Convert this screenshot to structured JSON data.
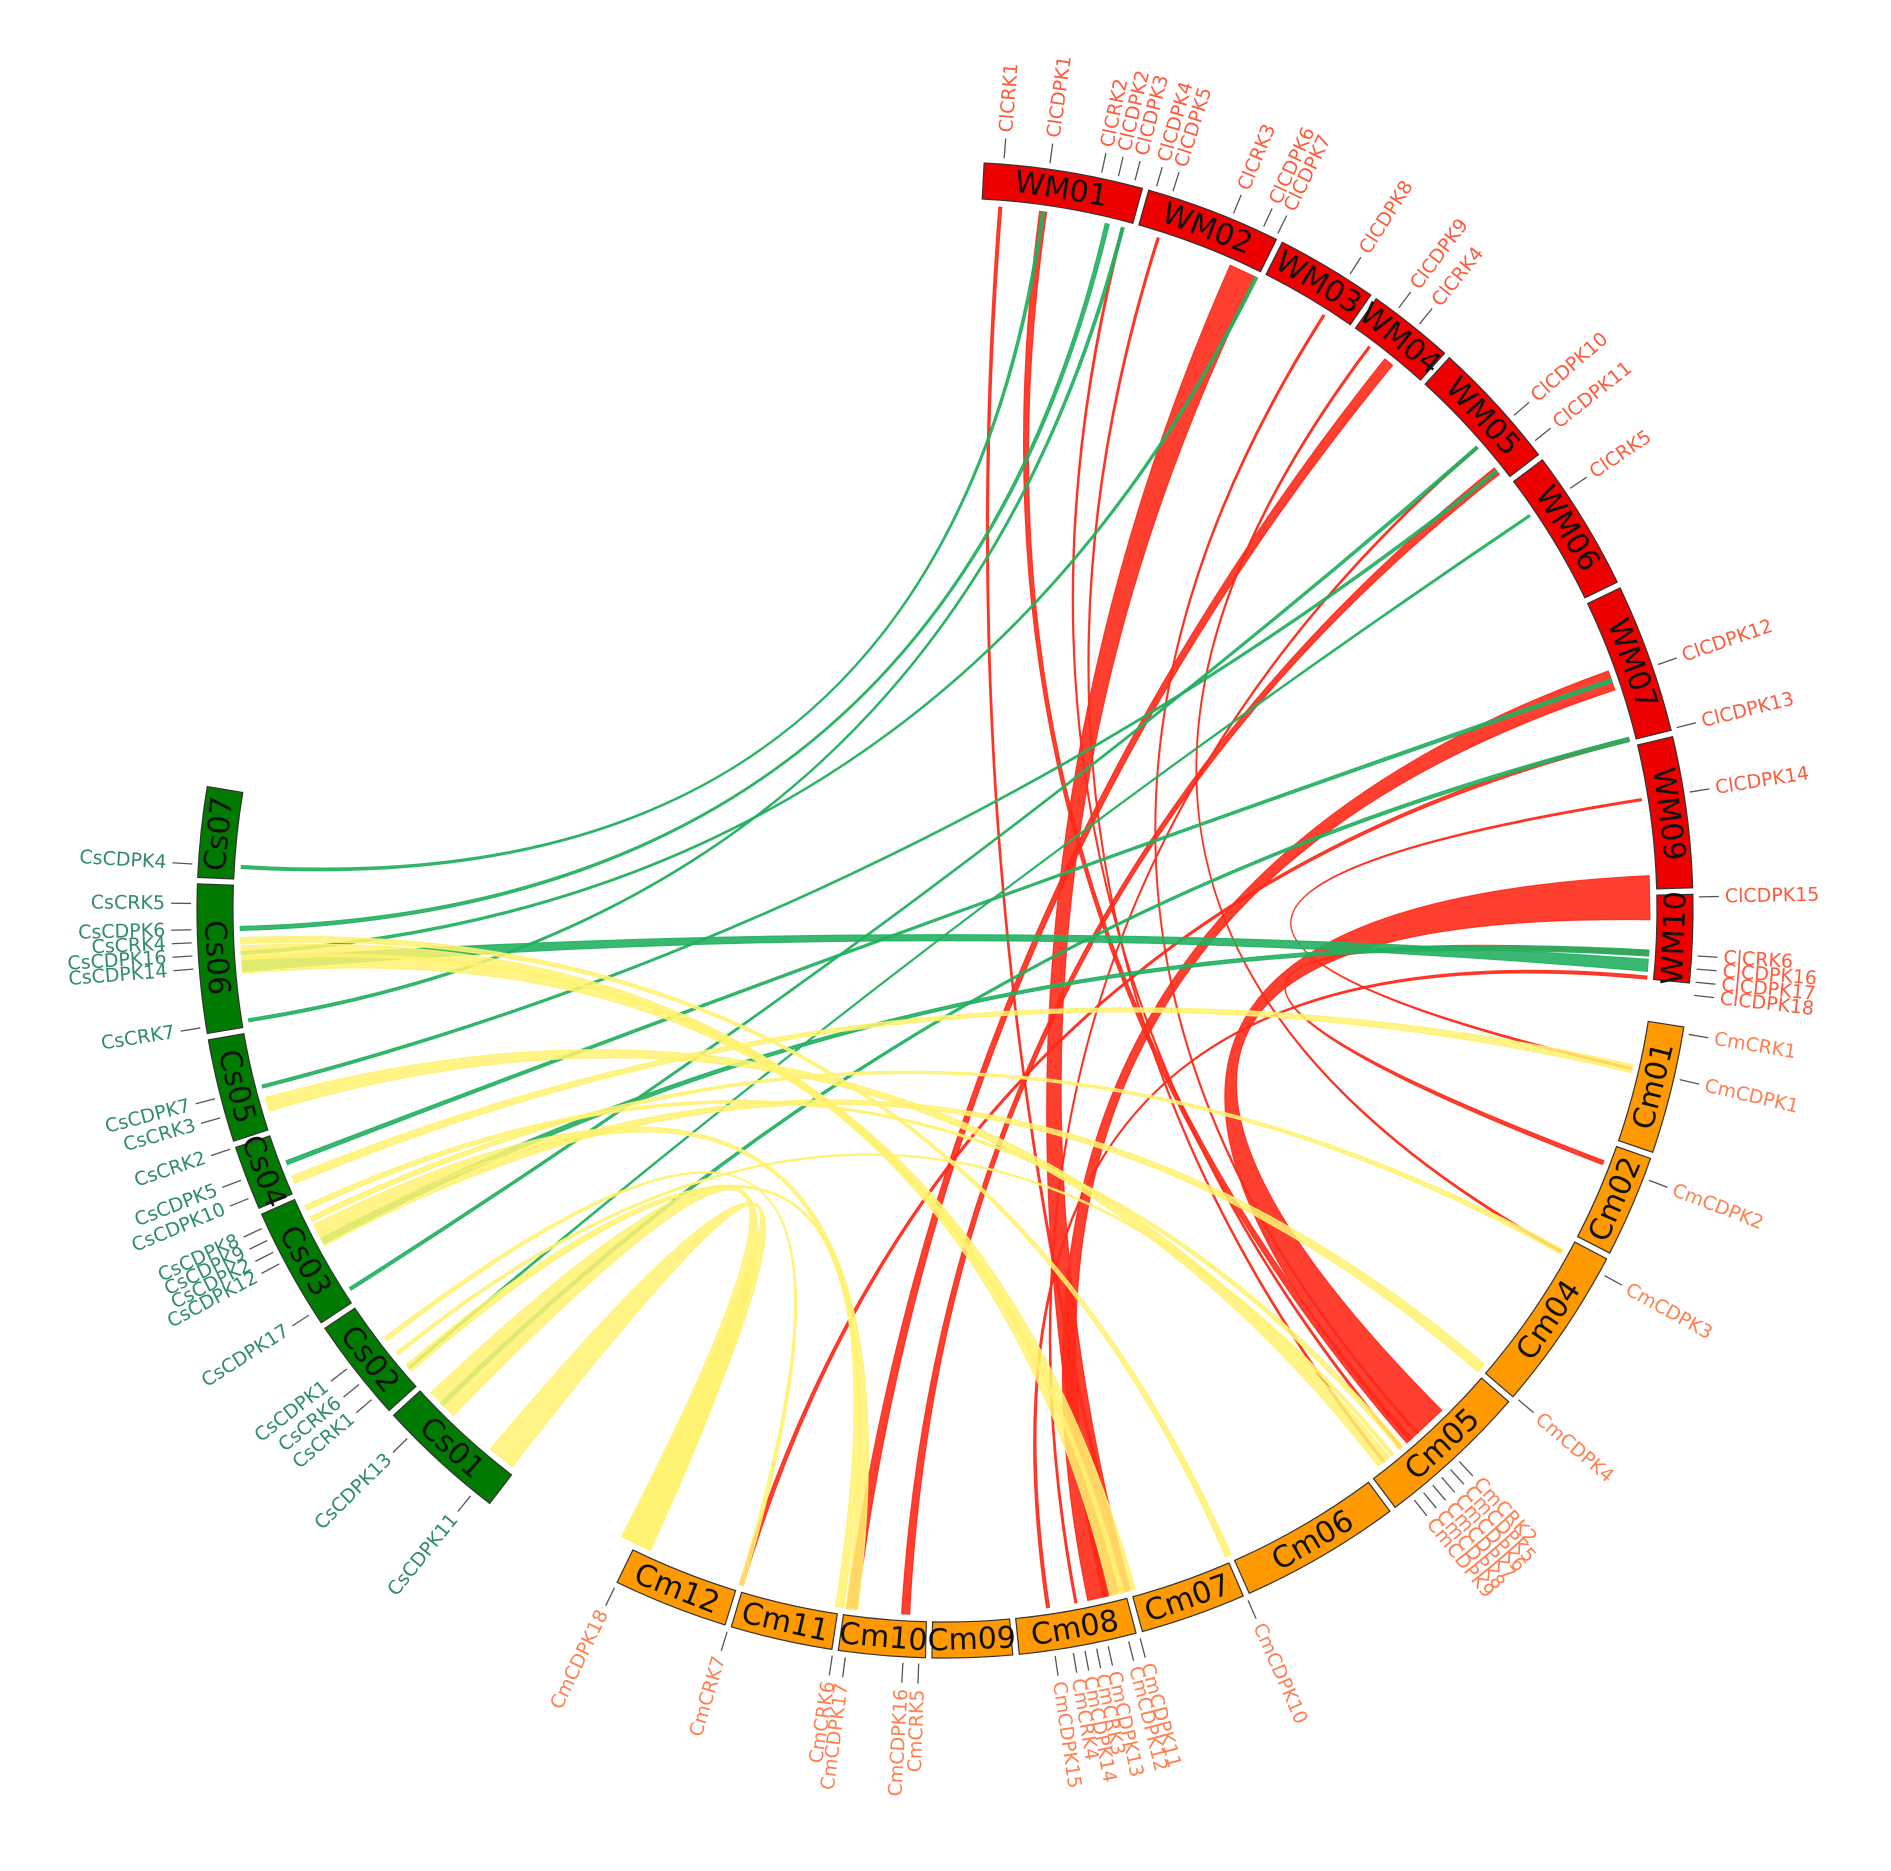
{
  "colors": {
    "cs": "#007a00",
    "cs_label": "#2e8b6e",
    "cs_link": "#22b060",
    "wm": "#ee0000",
    "wm_label": "#ff5a3c",
    "wm_link": "#ff2a1a",
    "cm": "#ff9900",
    "cm_label": "#ff7f50",
    "cm_link": "#fff270"
  },
  "chromosomes": [
    {
      "name": "WM01",
      "group": "wm"
    },
    {
      "name": "WM02",
      "group": "wm"
    },
    {
      "name": "WM03",
      "group": "wm"
    },
    {
      "name": "WM04",
      "group": "wm"
    },
    {
      "name": "WM05",
      "group": "wm"
    },
    {
      "name": "WM06",
      "group": "wm"
    },
    {
      "name": "WM07",
      "group": "wm"
    },
    {
      "name": "WM09",
      "group": "wm"
    },
    {
      "name": "WM10",
      "group": "wm"
    },
    {
      "name": "Cm01",
      "group": "cm"
    },
    {
      "name": "Cm02",
      "group": "cm"
    },
    {
      "name": "Cm04",
      "group": "cm"
    },
    {
      "name": "Cm05",
      "group": "cm"
    },
    {
      "name": "Cm06",
      "group": "cm"
    },
    {
      "name": "Cm07",
      "group": "cm"
    },
    {
      "name": "Cm08",
      "group": "cm"
    },
    {
      "name": "Cm09",
      "group": "cm"
    },
    {
      "name": "Cm10",
      "group": "cm"
    },
    {
      "name": "Cm11",
      "group": "cm"
    },
    {
      "name": "Cm12",
      "group": "cm"
    },
    {
      "name": "Cs01",
      "group": "cs"
    },
    {
      "name": "Cs02",
      "group": "cs"
    },
    {
      "name": "Cs03",
      "group": "cs"
    },
    {
      "name": "Cs04",
      "group": "cs"
    },
    {
      "name": "Cs05",
      "group": "cs"
    },
    {
      "name": "Cs06",
      "group": "cs"
    },
    {
      "name": "Cs07",
      "group": "cs"
    }
  ],
  "genes": [
    {
      "name": "ClCRK1",
      "group": "wm"
    },
    {
      "name": "ClCDPK1",
      "group": "wm"
    },
    {
      "name": "ClCRK2",
      "group": "wm"
    },
    {
      "name": "ClCDPK2",
      "group": "wm"
    },
    {
      "name": "ClCDPK3",
      "group": "wm"
    },
    {
      "name": "ClCDPK4",
      "group": "wm"
    },
    {
      "name": "ClCDPK5",
      "group": "wm"
    },
    {
      "name": "ClCRK3",
      "group": "wm"
    },
    {
      "name": "ClCDPK6",
      "group": "wm"
    },
    {
      "name": "ClCDPK7",
      "group": "wm"
    },
    {
      "name": "ClCDPK8",
      "group": "wm"
    },
    {
      "name": "ClCDPK9",
      "group": "wm"
    },
    {
      "name": "ClCRK4",
      "group": "wm"
    },
    {
      "name": "ClCDPK10",
      "group": "wm"
    },
    {
      "name": "ClCDPK11",
      "group": "wm"
    },
    {
      "name": "ClCRK5",
      "group": "wm"
    },
    {
      "name": "ClCDPK12",
      "group": "wm"
    },
    {
      "name": "ClCDPK13",
      "group": "wm"
    },
    {
      "name": "ClCDPK14",
      "group": "wm"
    },
    {
      "name": "ClCDPK15",
      "group": "wm"
    },
    {
      "name": "ClCRK6",
      "group": "wm"
    },
    {
      "name": "ClCDPK16",
      "group": "wm"
    },
    {
      "name": "ClCDPK17",
      "group": "wm"
    },
    {
      "name": "ClCDPK18",
      "group": "wm"
    },
    {
      "name": "CmCRK1",
      "group": "cm"
    },
    {
      "name": "CmCDPK1",
      "group": "cm"
    },
    {
      "name": "CmCDPK2",
      "group": "cm"
    },
    {
      "name": "CmCDPK3",
      "group": "cm"
    },
    {
      "name": "CmCDPK4",
      "group": "cm"
    },
    {
      "name": "CmCRK2",
      "group": "cm"
    },
    {
      "name": "CmCDPK5",
      "group": "cm"
    },
    {
      "name": "CmCDPK6",
      "group": "cm"
    },
    {
      "name": "CmCDPK7",
      "group": "cm"
    },
    {
      "name": "CmCDPK8",
      "group": "cm"
    },
    {
      "name": "CmCDPK9",
      "group": "cm"
    },
    {
      "name": "CmCDPK10",
      "group": "cm"
    },
    {
      "name": "CmCDPK11",
      "group": "cm"
    },
    {
      "name": "CmCDPK12",
      "group": "cm"
    },
    {
      "name": "CmCDPK13",
      "group": "cm"
    },
    {
      "name": "CmCRK3",
      "group": "cm"
    },
    {
      "name": "CmCDPK14",
      "group": "cm"
    },
    {
      "name": "CmCRK4",
      "group": "cm"
    },
    {
      "name": "CmCDPK15",
      "group": "cm"
    },
    {
      "name": "CmCRK5",
      "group": "cm"
    },
    {
      "name": "CmCDPK16",
      "group": "cm"
    },
    {
      "name": "CmCDPK17",
      "group": "cm"
    },
    {
      "name": "CmCRK6",
      "group": "cm"
    },
    {
      "name": "CmCRK7",
      "group": "cm"
    },
    {
      "name": "CmCDPK18",
      "group": "cm"
    },
    {
      "name": "CsCDPK11",
      "group": "cs"
    },
    {
      "name": "CsCDPK13",
      "group": "cs"
    },
    {
      "name": "CsCRK1",
      "group": "cs"
    },
    {
      "name": "CsCRK6",
      "group": "cs"
    },
    {
      "name": "CsCDPK1",
      "group": "cs"
    },
    {
      "name": "CsCDPK17",
      "group": "cs"
    },
    {
      "name": "CsCDPK12",
      "group": "cs"
    },
    {
      "name": "CsCDPK2",
      "group": "cs"
    },
    {
      "name": "CsCDPK9",
      "group": "cs"
    },
    {
      "name": "CsCDPK8",
      "group": "cs"
    },
    {
      "name": "CsCDPK10",
      "group": "cs"
    },
    {
      "name": "CsCDPK5",
      "group": "cs"
    },
    {
      "name": "CsCRK2",
      "group": "cs"
    },
    {
      "name": "CsCRK3",
      "group": "cs"
    },
    {
      "name": "CsCDPK7",
      "group": "cs"
    },
    {
      "name": "CsCRK7",
      "group": "cs"
    },
    {
      "name": "CsCDPK14",
      "group": "cs"
    },
    {
      "name": "CsCDPK16",
      "group": "cs"
    },
    {
      "name": "CsCRK4",
      "group": "cs"
    },
    {
      "name": "CsCDPK6",
      "group": "cs"
    },
    {
      "name": "CsCRK5",
      "group": "cs"
    },
    {
      "name": "CsCDPK4",
      "group": "cs"
    }
  ],
  "links": [
    {
      "from": "ClCDPK1",
      "to": "CmCDPK6",
      "group": "wm"
    },
    {
      "from": "ClCDPK5",
      "to": "CmCDPK9",
      "group": "wm"
    },
    {
      "from": "ClCDPK6",
      "to": "CmCDPK12",
      "group": "wm"
    },
    {
      "from": "ClCDPK8",
      "to": "CmCDPK5",
      "group": "wm"
    },
    {
      "from": "ClCDPK15",
      "to": "CmCRK2",
      "group": "wm"
    },
    {
      "from": "ClCRK4",
      "to": "CmCDPK17",
      "group": "wm"
    },
    {
      "from": "ClCDPK10",
      "to": "CmCDPK14",
      "group": "wm"
    },
    {
      "from": "ClCDPK11",
      "to": "CmCDPK16",
      "group": "wm"
    },
    {
      "from": "ClCDPK12",
      "to": "CmCDPK13",
      "group": "wm"
    },
    {
      "from": "ClCDPK13",
      "to": "CmCRK7",
      "group": "wm"
    },
    {
      "from": "ClCRK6",
      "to": "CmCDPK2",
      "group": "wm"
    },
    {
      "from": "ClCDPK17",
      "to": "CmCDPK15",
      "group": "wm"
    },
    {
      "from": "ClCDPK14",
      "to": "CmCDPK1",
      "group": "wm"
    },
    {
      "from": "ClCDPK3",
      "to": "CmCDPK7",
      "group": "wm"
    },
    {
      "from": "ClCRK1",
      "to": "CmCDPK11",
      "group": "wm"
    },
    {
      "from": "ClCDPK9",
      "to": "CmCDPK3",
      "group": "wm"
    },
    {
      "from": "CsCDPK14",
      "to": "ClCDPK16",
      "group": "cs"
    },
    {
      "from": "CsCDPK4",
      "to": "ClCDPK1",
      "group": "cs"
    },
    {
      "from": "CsCDPK6",
      "to": "ClCDPK2",
      "group": "cs"
    },
    {
      "from": "CsCDPK7",
      "to": "ClCDPK11",
      "group": "cs"
    },
    {
      "from": "CsCDPK5",
      "to": "ClCDPK12",
      "group": "cs"
    },
    {
      "from": "CsCDPK12",
      "to": "ClCRK6",
      "group": "cs"
    },
    {
      "from": "CsCRK1",
      "to": "ClCRK5",
      "group": "cs"
    },
    {
      "from": "CsCDPK13",
      "to": "ClCDPK13",
      "group": "cs"
    },
    {
      "from": "CsCRK7",
      "to": "ClCDPK3",
      "group": "cs"
    },
    {
      "from": "CsCDPK16",
      "to": "ClCDPK7",
      "group": "cs"
    },
    {
      "from": "CsCDPK17",
      "to": "ClCDPK10",
      "group": "cs"
    },
    {
      "from": "CsCDPK11",
      "to": "CmCDPK18",
      "group": "cm"
    },
    {
      "from": "CsCDPK13",
      "to": "CmCDPK18",
      "group": "cm"
    },
    {
      "from": "CsCRK3",
      "to": "CmCDPK9",
      "group": "cm"
    },
    {
      "from": "CsCDPK16",
      "to": "CmCDPK12",
      "group": "cm"
    },
    {
      "from": "CsCDPK14",
      "to": "CmCDPK11",
      "group": "cm"
    },
    {
      "from": "CsCDPK12",
      "to": "CmCDPK4",
      "group": "cm"
    },
    {
      "from": "CsCDPK10",
      "to": "CmCDPK1",
      "group": "cm"
    },
    {
      "from": "CsCDPK2",
      "to": "CmCDPK17",
      "group": "cm"
    },
    {
      "from": "CsCRK6",
      "to": "CmCDPK8",
      "group": "cm"
    },
    {
      "from": "CsCRK1",
      "to": "CmCRK6",
      "group": "cm"
    },
    {
      "from": "CsCDPK9",
      "to": "CmCDPK3",
      "group": "cm"
    },
    {
      "from": "CsCRK4",
      "to": "CmCDPK10",
      "group": "cm"
    },
    {
      "from": "CsCDPK8",
      "to": "CmCDPK7",
      "group": "cm"
    },
    {
      "from": "CsCDPK1",
      "to": "CmCRK7",
      "group": "cm"
    }
  ]
}
